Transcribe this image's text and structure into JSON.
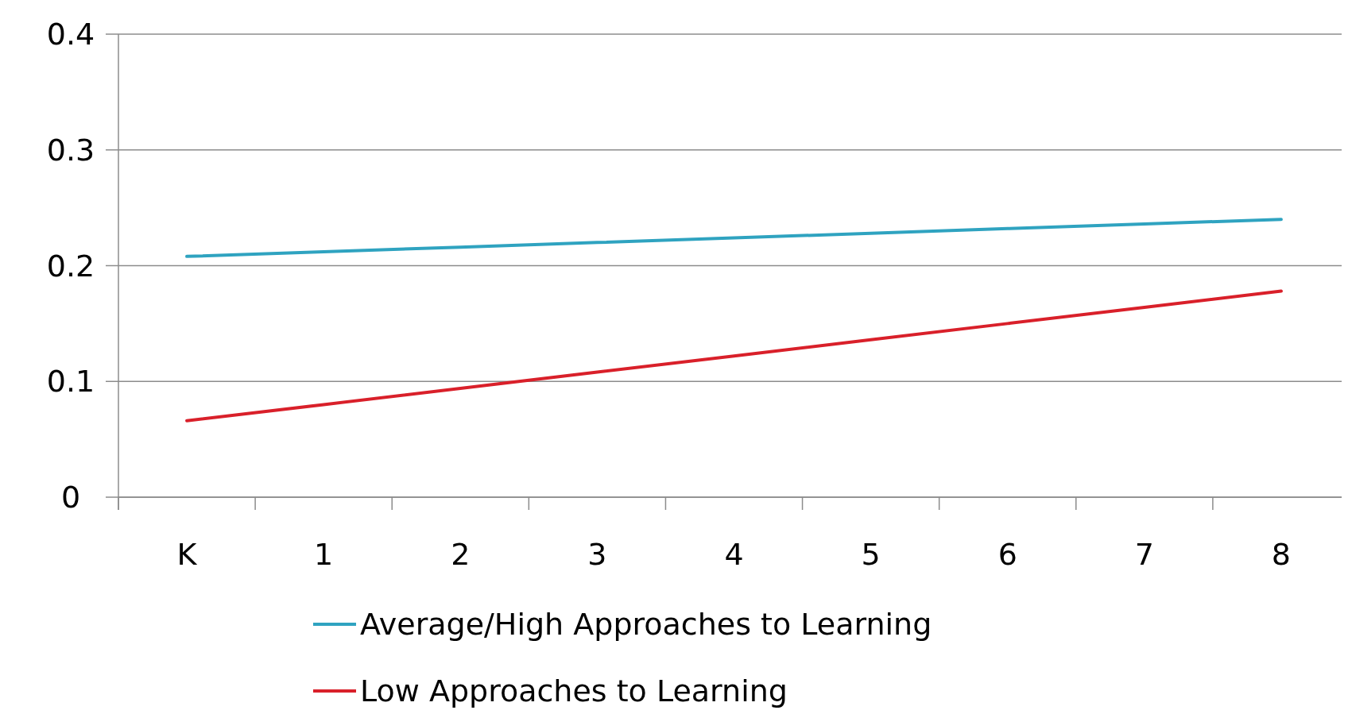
{
  "chart_data": {
    "type": "line",
    "categories": [
      "K",
      "1",
      "2",
      "3",
      "4",
      "5",
      "6",
      "7",
      "8"
    ],
    "series": [
      {
        "name": "Average/High Approaches to Learning",
        "color": "#2fa3c0",
        "values": [
          0.208,
          0.212,
          0.216,
          0.22,
          0.224,
          0.228,
          0.232,
          0.236,
          0.24
        ]
      },
      {
        "name": "Low Approaches to Learning",
        "color": "#d9202a",
        "values": [
          0.066,
          0.08,
          0.094,
          0.108,
          0.122,
          0.136,
          0.15,
          0.164,
          0.178
        ]
      }
    ],
    "ylim": [
      0,
      0.4
    ],
    "yticks": [
      0,
      0.1,
      0.2,
      0.3,
      0.4
    ],
    "grid": "y",
    "legend": "bottom",
    "marker": "none",
    "line_style": "solid"
  }
}
